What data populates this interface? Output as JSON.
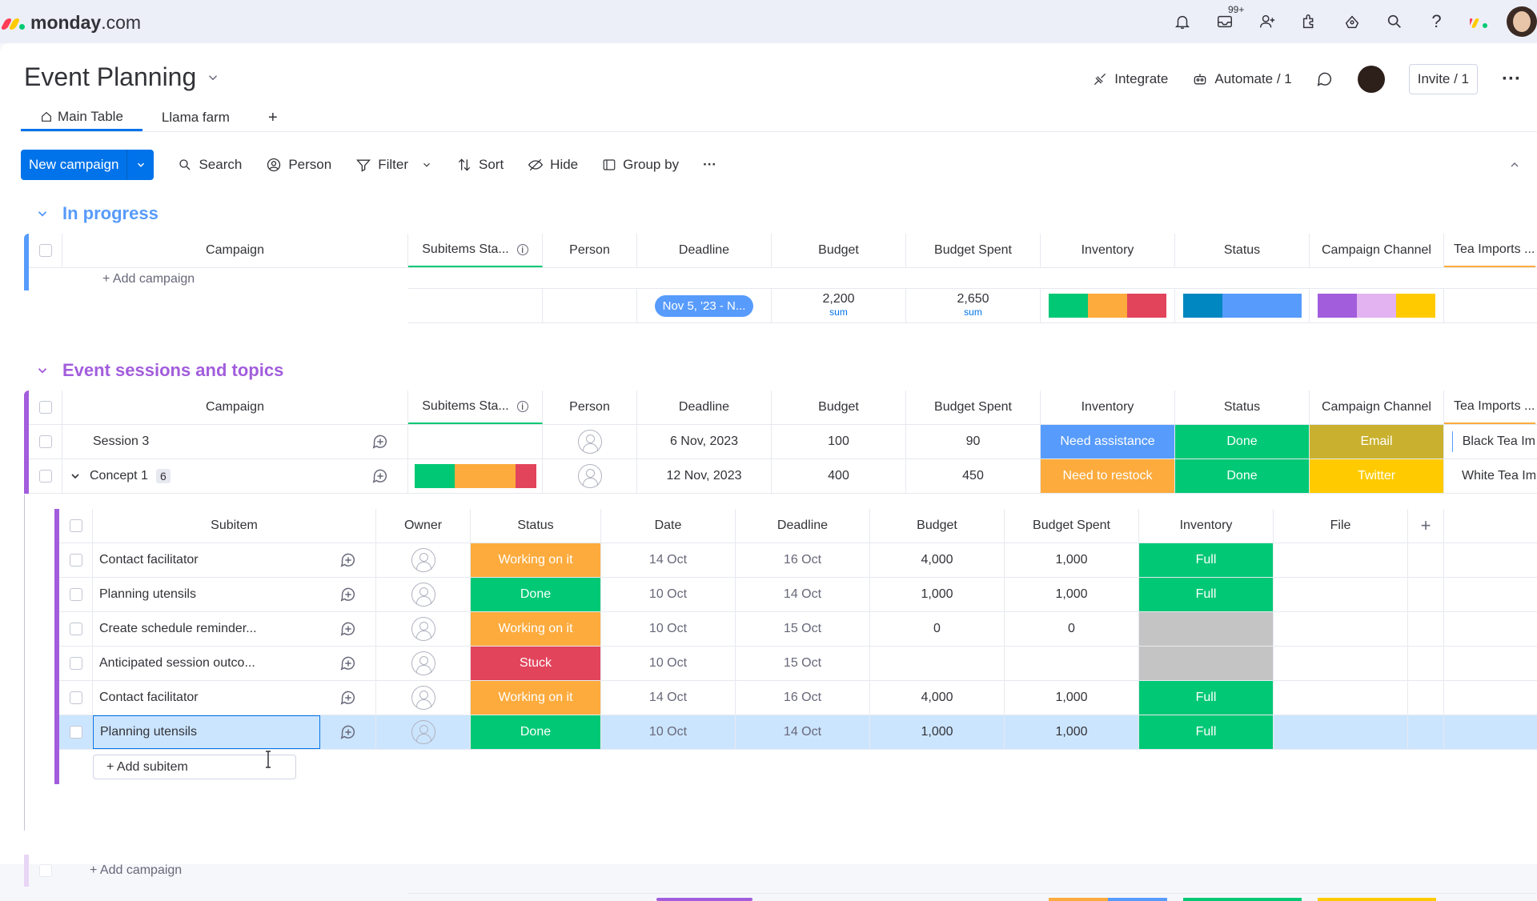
{
  "app": {
    "brand": "monday",
    "brand_suffix": ".com",
    "notification_badge": "99+"
  },
  "board": {
    "title": "Event Planning",
    "integrate": "Integrate",
    "automate": "Automate / 1",
    "invite": "Invite / 1"
  },
  "tabs": [
    {
      "label": "Main Table"
    },
    {
      "label": "Llama farm"
    },
    {
      "label": "+"
    }
  ],
  "toolbar": {
    "new": "New campaign",
    "search": "Search",
    "person": "Person",
    "filter": "Filter",
    "sort": "Sort",
    "hide": "Hide",
    "group_by": "Group by",
    "more": "···"
  },
  "columns": [
    "Campaign",
    "Subitems Sta...",
    "Person",
    "Deadline",
    "Budget",
    "Budget Spent",
    "Inventory",
    "Status",
    "Campaign Channel",
    "Tea Imports ..."
  ],
  "groups": [
    {
      "title": "In progress",
      "color": "#579bfc",
      "add_label": "+ Add campaign",
      "summary": {
        "deadline": "Nov 5, '23 - N...",
        "budget": "2,200",
        "budget_spent": "2,650",
        "sum_label": "sum"
      }
    },
    {
      "title": "Event sessions and topics",
      "color": "#a25ddc",
      "add_label": "+ Add campaign",
      "rows": [
        {
          "name": "Session 3",
          "deadline": "6 Nov, 2023",
          "budget": "100",
          "spent": "90",
          "inventory": "Need assistance",
          "inventory_color": "#579bfc",
          "status": "Done",
          "status_color": "#00c875",
          "channel": "Email",
          "channel_color": "#c9b12f",
          "tea": "Black Tea Im"
        },
        {
          "name": "Concept 1",
          "count": "6",
          "deadline": "12 Nov, 2023",
          "budget": "400",
          "spent": "450",
          "inventory": "Need to restock",
          "inventory_color": "#fdab3d",
          "status": "Done",
          "status_color": "#00c875",
          "channel": "Twitter",
          "channel_color": "#ffcb00",
          "tea": "White Tea Im"
        }
      ]
    }
  ],
  "subitems": {
    "columns": [
      "Subitem",
      "Owner",
      "Status",
      "Date",
      "Deadline",
      "Budget",
      "Budget Spent",
      "Inventory",
      "File",
      "+"
    ],
    "rows": [
      {
        "name": "Contact facilitator",
        "status": "Working on it",
        "status_color": "#fdab3d",
        "date": "14 Oct",
        "deadline": "16 Oct",
        "budget": "4,000",
        "spent": "1,000",
        "inventory": "Full",
        "inventory_color": "#00c875"
      },
      {
        "name": "Planning utensils",
        "status": "Done",
        "status_color": "#00c875",
        "date": "10 Oct",
        "deadline": "14 Oct",
        "budget": "1,000",
        "spent": "1,000",
        "inventory": "Full",
        "inventory_color": "#00c875"
      },
      {
        "name": "Create schedule reminder...",
        "status": "Working on it",
        "status_color": "#fdab3d",
        "date": "10 Oct",
        "deadline": "15 Oct",
        "budget": "0",
        "spent": "0",
        "inventory": "",
        "inventory_color": "#c4c4c4"
      },
      {
        "name": "Anticipated session outco...",
        "status": "Stuck",
        "status_color": "#e2445c",
        "date": "10 Oct",
        "deadline": "15 Oct",
        "budget": "",
        "spent": "",
        "inventory": "",
        "inventory_color": "#c4c4c4"
      },
      {
        "name": "Contact facilitator",
        "status": "Working on it",
        "status_color": "#fdab3d",
        "date": "14 Oct",
        "deadline": "16 Oct",
        "budget": "4,000",
        "spent": "1,000",
        "inventory": "Full",
        "inventory_color": "#00c875"
      },
      {
        "name": "Planning utensils",
        "status": "Done",
        "status_color": "#00c875",
        "date": "10 Oct",
        "deadline": "14 Oct",
        "budget": "1,000",
        "spent": "1,000",
        "inventory": "Full",
        "inventory_color": "#00c875"
      }
    ],
    "add_label": "+ Add subitem"
  },
  "colors": {
    "accent": "#0073ea",
    "group1": "#579bfc",
    "group2": "#a25ddc",
    "selected_row": "#cce5ff"
  }
}
